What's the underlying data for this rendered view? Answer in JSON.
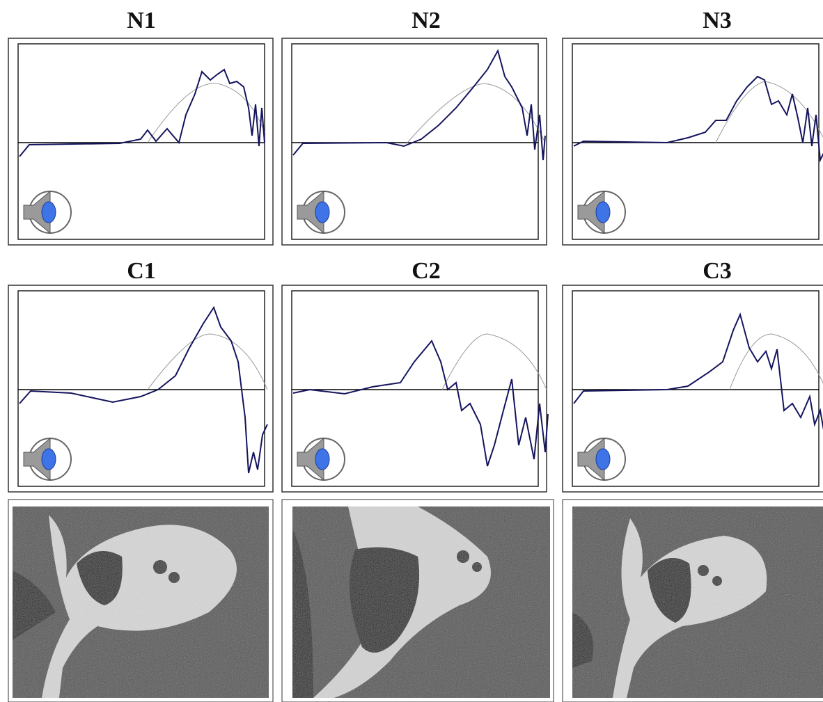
{
  "panels": [
    {
      "title": "N1"
    },
    {
      "title": "N2"
    },
    {
      "title": "N3"
    },
    {
      "title": "C1"
    },
    {
      "title": "C2"
    },
    {
      "title": "C3"
    }
  ]
}
